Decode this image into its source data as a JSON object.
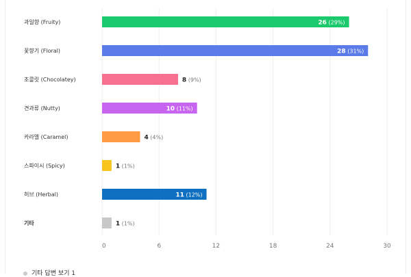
{
  "chart_data": {
    "type": "bar",
    "orientation": "horizontal",
    "categories": [
      "과일향 (Fruity)",
      "꽃향기 (Floral)",
      "초콜릿 (Chocolatey)",
      "견과류 (Nutty)",
      "카라멜 (Caramel)",
      "스파이시 (Spicy)",
      "허브 (Herbal)",
      "기타"
    ],
    "values": [
      26,
      28,
      8,
      10,
      4,
      1,
      11,
      1
    ],
    "percent_labels": [
      "(29%)",
      "(31%)",
      "(9%)",
      "(11%)",
      "(4%)",
      "(1%)",
      "(12%)",
      "(1%)"
    ],
    "colors": [
      "#19c96b",
      "#5b7be8",
      "#f7708f",
      "#c765f0",
      "#ff9a44",
      "#f8c41e",
      "#0f6fc0",
      "#c8c8c8"
    ],
    "xlim": [
      0,
      30
    ],
    "xticks": [
      "0",
      "6",
      "12",
      "18",
      "24",
      "30"
    ],
    "grid": true,
    "title": "",
    "xlabel": "",
    "ylabel": ""
  },
  "footer": {
    "label": "기타 답변 보기 1"
  }
}
